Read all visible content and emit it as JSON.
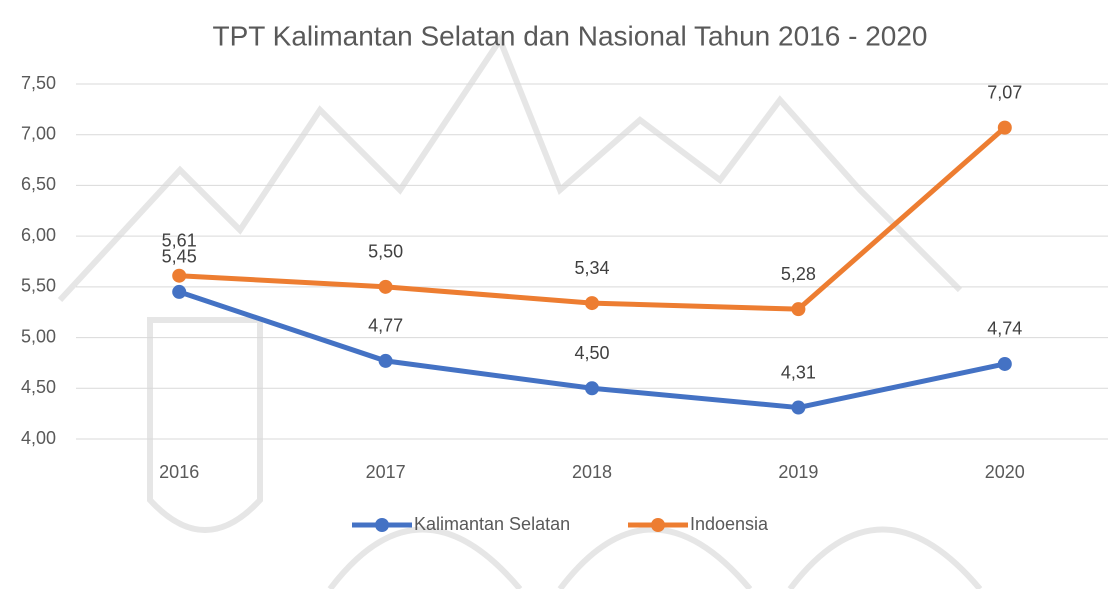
{
  "chart_data": {
    "type": "line",
    "title": "TPT Kalimantan Selatan  dan Nasional Tahun 2016 - 2020",
    "categories": [
      "2016",
      "2017",
      "2018",
      "2019",
      "2020"
    ],
    "series": [
      {
        "name": "Kalimantan Selatan",
        "color": "#4472c4",
        "values": [
          5.45,
          4.77,
          4.5,
          4.31,
          4.74
        ],
        "value_labels": [
          "5,45",
          "4,77",
          "4,50",
          "4,31",
          "4,74"
        ]
      },
      {
        "name": "Indoensia",
        "color": "#ed7d31",
        "values": [
          5.61,
          5.5,
          5.34,
          5.28,
          7.07
        ],
        "value_labels": [
          "5,61",
          "5,50",
          "5,34",
          "5,28",
          "7,07"
        ]
      }
    ],
    "ylim": [
      4.0,
      7.5
    ],
    "yticks": [
      {
        "value": 4.0,
        "label": "4,00"
      },
      {
        "value": 4.5,
        "label": "4,50"
      },
      {
        "value": 5.0,
        "label": "5,00"
      },
      {
        "value": 5.5,
        "label": "5,50"
      },
      {
        "value": 6.0,
        "label": "6,00"
      },
      {
        "value": 6.5,
        "label": "6,50"
      },
      {
        "value": 7.0,
        "label": "7,00"
      },
      {
        "value": 7.5,
        "label": "7,50"
      }
    ],
    "grid": true,
    "legend": "bottom"
  }
}
